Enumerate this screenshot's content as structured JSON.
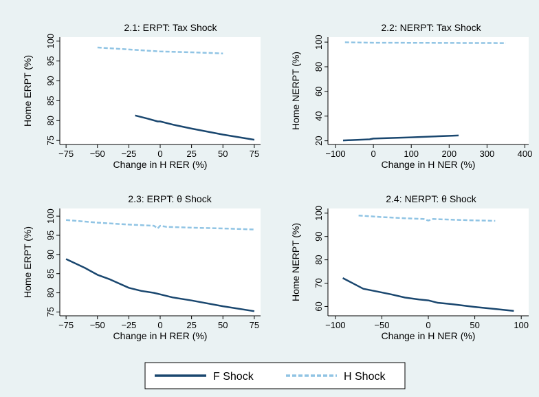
{
  "colors": {
    "background": "#eaf2f3",
    "panel": "#ffffff",
    "f_shock": "#1a476f",
    "h_shock": "#90c4e4"
  },
  "legend": {
    "items": [
      {
        "label": "F Shock",
        "style": "solid"
      },
      {
        "label": "H Shock",
        "style": "dashed"
      }
    ]
  },
  "chart_data": [
    {
      "type": "line",
      "title": "2.1:  ERPT: Tax Shock",
      "xlabel": "Change in H RER (%)",
      "ylabel": "Home ERPT (%)",
      "xlim": [
        -80,
        80
      ],
      "ylim": [
        74,
        101
      ],
      "xticks": [
        -75,
        -50,
        -25,
        0,
        25,
        50,
        75
      ],
      "yticks": [
        75,
        80,
        85,
        90,
        95,
        100
      ],
      "series": [
        {
          "name": "F Shock",
          "x": [
            -20,
            -10,
            -2,
            0,
            10,
            25,
            50,
            75
          ],
          "y": [
            81.3,
            80.5,
            79.8,
            79.8,
            79.0,
            78.0,
            76.5,
            75.2
          ]
        },
        {
          "name": "H Shock",
          "x": [
            -50,
            -25,
            0,
            25,
            50
          ],
          "y": [
            98.4,
            97.9,
            97.4,
            97.2,
            96.9
          ]
        }
      ]
    },
    {
      "type": "line",
      "title": "2.2:  NERPT: Tax Shock",
      "xlabel": "Change in H NER (%)",
      "ylabel": "Home NERPT (%)",
      "xlim": [
        -120,
        410
      ],
      "ylim": [
        17,
        104
      ],
      "xticks": [
        -100,
        0,
        100,
        200,
        300,
        400
      ],
      "yticks": [
        20,
        40,
        60,
        80,
        100
      ],
      "series": [
        {
          "name": "F Shock",
          "x": [
            -80,
            -10,
            0,
            100,
            225
          ],
          "y": [
            20.3,
            21.2,
            21.8,
            22.8,
            24.3
          ]
        },
        {
          "name": "H Shock",
          "x": [
            -75,
            0,
            100,
            200,
            350
          ],
          "y": [
            99.8,
            99.5,
            99.4,
            99.3,
            99.2
          ]
        }
      ]
    },
    {
      "type": "line",
      "title": "2.3:  ERPT:  θ Shock",
      "xlabel": "Change in H RER (%)",
      "ylabel": "Home ERPT (%)",
      "xlim": [
        -80,
        80
      ],
      "ylim": [
        74,
        102
      ],
      "xticks": [
        -75,
        -50,
        -25,
        0,
        25,
        50,
        75
      ],
      "yticks": [
        75,
        80,
        85,
        90,
        95,
        100
      ],
      "series": [
        {
          "name": "F Shock",
          "x": [
            -75,
            -60,
            -50,
            -40,
            -25,
            -15,
            -5,
            0,
            10,
            25,
            50,
            75
          ],
          "y": [
            88.8,
            86.5,
            84.7,
            83.5,
            81.3,
            80.5,
            80.0,
            79.6,
            78.8,
            78.0,
            76.5,
            75.2
          ]
        },
        {
          "name": "H Shock",
          "x": [
            -75,
            -50,
            -25,
            -5,
            -2,
            0,
            5,
            25,
            50,
            75
          ],
          "y": [
            99.0,
            98.3,
            97.8,
            97.5,
            96.8,
            97.5,
            97.2,
            97.0,
            96.8,
            96.5
          ]
        }
      ]
    },
    {
      "type": "line",
      "title": "2.4:  NERPT:  θ Shock",
      "xlabel": "Change in H NER (%)",
      "ylabel": "Home NERPT (%)",
      "xlim": [
        -108,
        108
      ],
      "ylim": [
        56,
        102
      ],
      "xticks": [
        -100,
        -50,
        0,
        50,
        100
      ],
      "yticks": [
        60,
        70,
        80,
        90,
        100
      ],
      "series": [
        {
          "name": "F Shock",
          "x": [
            -92,
            -70,
            -55,
            -40,
            -25,
            -10,
            0,
            10,
            25,
            50,
            75,
            92
          ],
          "y": [
            72.2,
            67.6,
            66.4,
            65.2,
            63.8,
            63.0,
            62.6,
            61.6,
            61.0,
            59.8,
            58.8,
            58.1
          ]
        },
        {
          "name": "H Shock",
          "x": [
            -75,
            -50,
            -25,
            -5,
            0,
            5,
            25,
            50,
            72
          ],
          "y": [
            99.0,
            98.3,
            97.8,
            97.5,
            96.8,
            97.5,
            97.2,
            96.9,
            96.7
          ]
        }
      ]
    }
  ]
}
